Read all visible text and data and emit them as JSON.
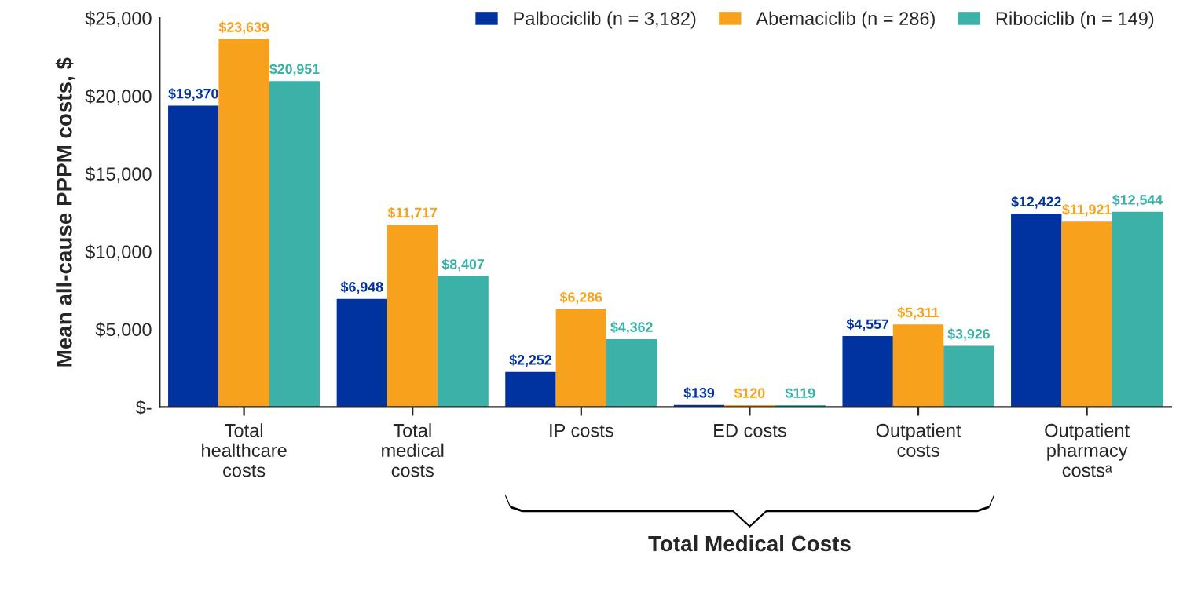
{
  "chart_data": {
    "type": "bar",
    "categories": [
      "Total\nhealthcare\ncosts",
      "Total\nmedical\ncosts",
      "IP costs",
      "ED costs",
      "Outpatient\ncosts",
      "Outpatient\npharmacy\ncostsᵃ"
    ],
    "ylabel": "Mean all-cause PPPM costs, $",
    "ylim": [
      0,
      25000
    ],
    "yticks": [
      {
        "value": 0,
        "label": "$-"
      },
      {
        "value": 5000,
        "label": "$5,000"
      },
      {
        "value": 10000,
        "label": "$10,000"
      },
      {
        "value": 15000,
        "label": "$15,000"
      },
      {
        "value": 20000,
        "label": "$20,000"
      },
      {
        "value": 25000,
        "label": "$25,000"
      }
    ],
    "series": [
      {
        "name": "Palbociclib (n = 3,182)",
        "color": "#0033a0",
        "values": [
          19370,
          6948,
          2252,
          139,
          4557,
          12422
        ],
        "value_labels": [
          "$19,370",
          "$6,948",
          "$2,252",
          "$139",
          "$4,557",
          "$12,422"
        ]
      },
      {
        "name": "Abemaciclib (n = 286)",
        "color": "#f8a11c",
        "values": [
          23639,
          11717,
          6286,
          120,
          5311,
          11921
        ],
        "value_labels": [
          "$23,639",
          "$11,717",
          "$6,286",
          "$120",
          "$5,311",
          "$11,921"
        ]
      },
      {
        "name": "Ribociclib (n = 149)",
        "color": "#3bb1a7",
        "values": [
          20951,
          8407,
          4362,
          119,
          3926,
          12544
        ],
        "value_labels": [
          "$20,951",
          "$8,407",
          "$4,362",
          "$119",
          "$3,926",
          "$12,544"
        ]
      }
    ],
    "annotations": [
      "Total Medical Costs"
    ],
    "legend": "top right",
    "grid": false
  }
}
